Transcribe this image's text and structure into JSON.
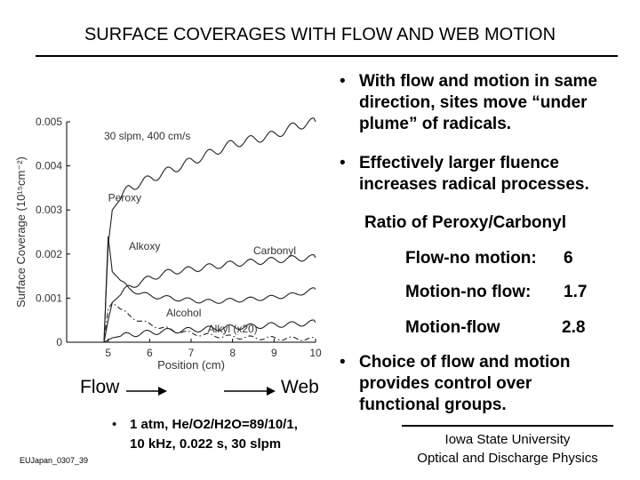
{
  "slide": {
    "title": "SURFACE COVERAGES WITH FLOW AND WEB MOTION",
    "bullets": [
      "With flow and motion in same direction, sites move “under plume” of radicals.",
      "Effectively larger fluence increases radical processes.",
      "Choice of flow and motion provides control over functional groups."
    ],
    "ratio_heading": "Ratio of Peroxy/Carbonyl",
    "ratios": [
      {
        "label": "Flow-no motion:",
        "value": "6"
      },
      {
        "label": "Motion-no flow:",
        "value": "1.7"
      },
      {
        "label": "Motion-flow",
        "value": "2.8"
      }
    ],
    "flow_label": "Flow",
    "web_label": "Web",
    "conditions_line1": "1 atm, He/O2/H2O=89/10/1,",
    "conditions_line2": "10 kHz, 0.022 s, 30 slpm",
    "footer_id": "EUJapan_0307_39",
    "institution_line1": "Iowa State University",
    "institution_line2": "Optical and Discharge Physics",
    "bullet_symbol": "•"
  },
  "chart_data": {
    "type": "line",
    "annotation": "30 slpm, 400 cm/s",
    "xlabel": "Position (cm)",
    "ylabel": "Surface Coverage (10¹⁵cm⁻²)",
    "xlim": [
      4.0,
      10.0
    ],
    "ylim": [
      0,
      0.005
    ],
    "xticks": [
      "5",
      "6",
      "7",
      "8",
      "9",
      "10"
    ],
    "yticks": [
      "0",
      "0.001",
      "0.002",
      "0.003",
      "0.004",
      "0.005"
    ],
    "series": [
      {
        "name": "Peroxy",
        "style": "solid",
        "x": [
          4.9,
          5.0,
          5.1,
          5.5,
          6.0,
          6.5,
          7.0,
          7.5,
          8.0,
          8.5,
          9.0,
          9.5,
          10.0
        ],
        "y": [
          0,
          0.0022,
          0.003,
          0.0035,
          0.0037,
          0.0039,
          0.0041,
          0.0043,
          0.0045,
          0.0046,
          0.0047,
          0.0049,
          0.005
        ]
      },
      {
        "name": "Carbonyl",
        "style": "solid",
        "x": [
          4.9,
          5.0,
          5.1,
          5.5,
          6.0,
          6.5,
          7.0,
          7.5,
          8.0,
          8.5,
          9.0,
          9.5,
          10.0
        ],
        "y": [
          0,
          0.0005,
          0.0009,
          0.00125,
          0.00145,
          0.0016,
          0.00165,
          0.00172,
          0.00178,
          0.00182,
          0.00186,
          0.0019,
          0.00192
        ]
      },
      {
        "name": "Alkoxy",
        "style": "solid",
        "x": [
          4.9,
          5.0,
          5.1,
          5.5,
          6.0,
          6.5,
          7.0,
          7.5,
          8.0,
          8.5,
          9.0,
          9.5,
          10.0
        ],
        "y": [
          0,
          0.0024,
          0.0016,
          0.0012,
          0.00105,
          0.001,
          0.00095,
          0.00092,
          0.00095,
          0.00098,
          0.00102,
          0.00108,
          0.0012
        ]
      },
      {
        "name": "Alcohol",
        "style": "dashdot",
        "x": [
          4.9,
          5.0,
          5.1,
          5.5,
          6.0,
          6.5,
          7.0,
          7.5,
          8.0,
          8.5,
          9.0,
          9.5,
          10.0
        ],
        "y": [
          0,
          0.00075,
          0.0009,
          0.0006,
          0.0004,
          0.00028,
          0.0002,
          0.00015,
          0.00012,
          0.0001,
          9e-05,
          8e-05,
          7e-05
        ]
      },
      {
        "name": "Alkyl (x20)",
        "style": "solid",
        "x": [
          4.9,
          5.0,
          5.1,
          5.5,
          6.0,
          6.5,
          7.0,
          7.5,
          8.0,
          8.5,
          9.0,
          9.5,
          10.0
        ],
        "y": [
          0,
          5e-05,
          0.0001,
          0.00017,
          0.00022,
          0.00026,
          0.00028,
          0.00031,
          0.00034,
          0.00036,
          0.00039,
          0.00041,
          0.00045
        ]
      }
    ]
  }
}
